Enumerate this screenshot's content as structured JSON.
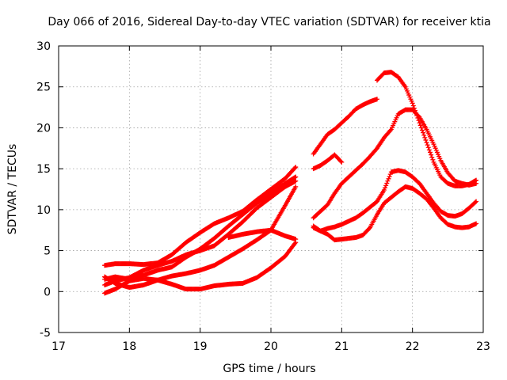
{
  "chart_data": {
    "type": "scatter",
    "title": "Day 066 of 2016, Sidereal Day-to-day VTEC variation (SDTVAR) for receiver ktia",
    "xlabel": "GPS time / hours",
    "ylabel": "SDTVAR / TECUs",
    "xlim": [
      17,
      23
    ],
    "ylim": [
      -5,
      30
    ],
    "xticks": [
      "17",
      "18",
      "19",
      "20",
      "21",
      "22",
      "23"
    ],
    "yticks": [
      "-5",
      "0",
      "5",
      "10",
      "15",
      "20",
      "25",
      "30"
    ],
    "grid": true,
    "marker": "+",
    "color": "#ff0000",
    "series": [
      {
        "name": "s1",
        "x": [
          17.65,
          17.8,
          18.0,
          18.2,
          18.4,
          18.6,
          18.8,
          19.0,
          19.2,
          19.4,
          19.6,
          19.8,
          20.0,
          20.2,
          20.35
        ],
        "y": [
          3.2,
          3.4,
          3.4,
          3.3,
          3.5,
          4.5,
          6.0,
          7.2,
          8.3,
          9.0,
          9.8,
          11.2,
          12.5,
          13.8,
          15.2
        ]
      },
      {
        "name": "s2",
        "x": [
          17.65,
          17.8,
          18.0,
          18.2,
          18.4,
          18.6,
          18.8,
          19.0,
          19.2,
          19.4,
          19.6,
          19.8,
          20.0,
          20.2,
          20.35
        ],
        "y": [
          1.5,
          1.8,
          1.5,
          2.0,
          2.6,
          3.0,
          4.2,
          5.2,
          6.5,
          8.0,
          9.4,
          10.8,
          12.0,
          13.2,
          14.0
        ]
      },
      {
        "name": "s3",
        "x": [
          17.65,
          17.8,
          18.0,
          18.2,
          18.4,
          18.6,
          18.8,
          19.0,
          19.2,
          19.4,
          19.6,
          19.8,
          20.0,
          20.2,
          20.35
        ],
        "y": [
          0.8,
          1.3,
          1.7,
          2.6,
          3.2,
          3.7,
          4.5,
          5.0,
          5.6,
          7.0,
          8.5,
          10.2,
          11.5,
          12.8,
          13.5
        ]
      },
      {
        "name": "s4",
        "x": [
          17.65,
          17.8,
          18.0,
          18.2,
          18.4,
          18.6,
          18.8,
          19.0,
          19.2,
          19.4,
          19.6,
          19.8,
          20.0,
          20.2,
          20.35
        ],
        "y": [
          1.8,
          1.0,
          0.5,
          0.8,
          1.4,
          1.9,
          2.2,
          2.6,
          3.2,
          4.2,
          5.2,
          6.3,
          7.5,
          10.5,
          12.8
        ]
      },
      {
        "name": "s5",
        "x": [
          17.65,
          17.8,
          18.0,
          18.2,
          18.4,
          18.6,
          18.8,
          19.0,
          19.2,
          19.4,
          19.6,
          19.8,
          20.0,
          20.2,
          20.35
        ],
        "y": [
          -0.2,
          0.3,
          1.3,
          1.6,
          1.4,
          0.9,
          0.3,
          0.3,
          0.7,
          0.9,
          1.0,
          1.7,
          2.9,
          4.3,
          6.0
        ]
      },
      {
        "name": "s6",
        "x": [
          19.4,
          19.6,
          19.8,
          20.0,
          20.2,
          20.35
        ],
        "y": [
          6.6,
          7.0,
          7.3,
          7.5,
          6.8,
          6.4
        ]
      },
      {
        "name": "s7",
        "x": [
          20.6,
          20.7,
          20.8,
          20.9,
          21.0,
          21.1,
          21.2,
          21.3,
          21.4,
          21.5
        ],
        "y": [
          16.8,
          18.0,
          19.2,
          19.8,
          20.6,
          21.4,
          22.3,
          22.8,
          23.2,
          23.5
        ]
      },
      {
        "name": "s8",
        "x": [
          21.5,
          21.6,
          21.7,
          21.8,
          21.9,
          22.0,
          22.1,
          22.2,
          22.3,
          22.4,
          22.5,
          22.6,
          22.7,
          22.8,
          22.9
        ],
        "y": [
          25.8,
          26.7,
          26.8,
          26.2,
          25.0,
          23.0,
          20.6,
          18.2,
          15.8,
          14.0,
          13.2,
          12.9,
          12.9,
          13.1,
          13.6
        ]
      },
      {
        "name": "s9",
        "x": [
          20.6,
          20.7,
          20.8,
          20.9,
          21.0
        ],
        "y": [
          15.0,
          15.4,
          16.0,
          16.7,
          15.8
        ]
      },
      {
        "name": "s10",
        "x": [
          20.6,
          20.7,
          20.8,
          20.9,
          21.0,
          21.1,
          21.2,
          21.3,
          21.4,
          21.5,
          21.6,
          21.7,
          21.8,
          21.9,
          22.0,
          22.1,
          22.2,
          22.3,
          22.4,
          22.5,
          22.6,
          22.7,
          22.8,
          22.9
        ],
        "y": [
          9.0,
          9.8,
          10.6,
          12.0,
          13.2,
          14.0,
          14.8,
          15.6,
          16.5,
          17.5,
          18.8,
          19.8,
          21.7,
          22.2,
          22.2,
          21.3,
          19.8,
          18.0,
          16.0,
          14.5,
          13.5,
          13.2,
          13.0,
          13.2
        ]
      },
      {
        "name": "s11",
        "x": [
          20.6,
          20.7,
          20.8,
          20.9,
          21.0,
          21.1,
          21.2,
          21.3,
          21.4,
          21.5,
          21.6,
          21.7,
          21.8,
          21.9,
          22.0,
          22.1,
          22.2,
          22.3,
          22.4,
          22.5,
          22.6,
          22.7,
          22.8,
          22.9
        ],
        "y": [
          8.0,
          7.4,
          7.7,
          7.9,
          8.2,
          8.6,
          9.0,
          9.6,
          10.3,
          11.0,
          12.4,
          14.6,
          14.8,
          14.6,
          14.0,
          13.2,
          12.0,
          10.8,
          9.8,
          9.3,
          9.2,
          9.5,
          10.2,
          11.0
        ]
      },
      {
        "name": "s12",
        "x": [
          20.6,
          20.7,
          20.8,
          20.9,
          21.0,
          21.1,
          21.2,
          21.3,
          21.4,
          21.5,
          21.6,
          21.7,
          21.8,
          21.9,
          22.0,
          22.1,
          22.2,
          22.3,
          22.4,
          22.5,
          22.6,
          22.7,
          22.8,
          22.9
        ],
        "y": [
          7.8,
          7.4,
          7.0,
          6.3,
          6.4,
          6.5,
          6.6,
          6.9,
          7.8,
          9.4,
          10.8,
          11.5,
          12.2,
          12.8,
          12.6,
          12.0,
          11.3,
          10.2,
          9.0,
          8.2,
          7.9,
          7.8,
          7.9,
          8.3
        ]
      }
    ]
  }
}
